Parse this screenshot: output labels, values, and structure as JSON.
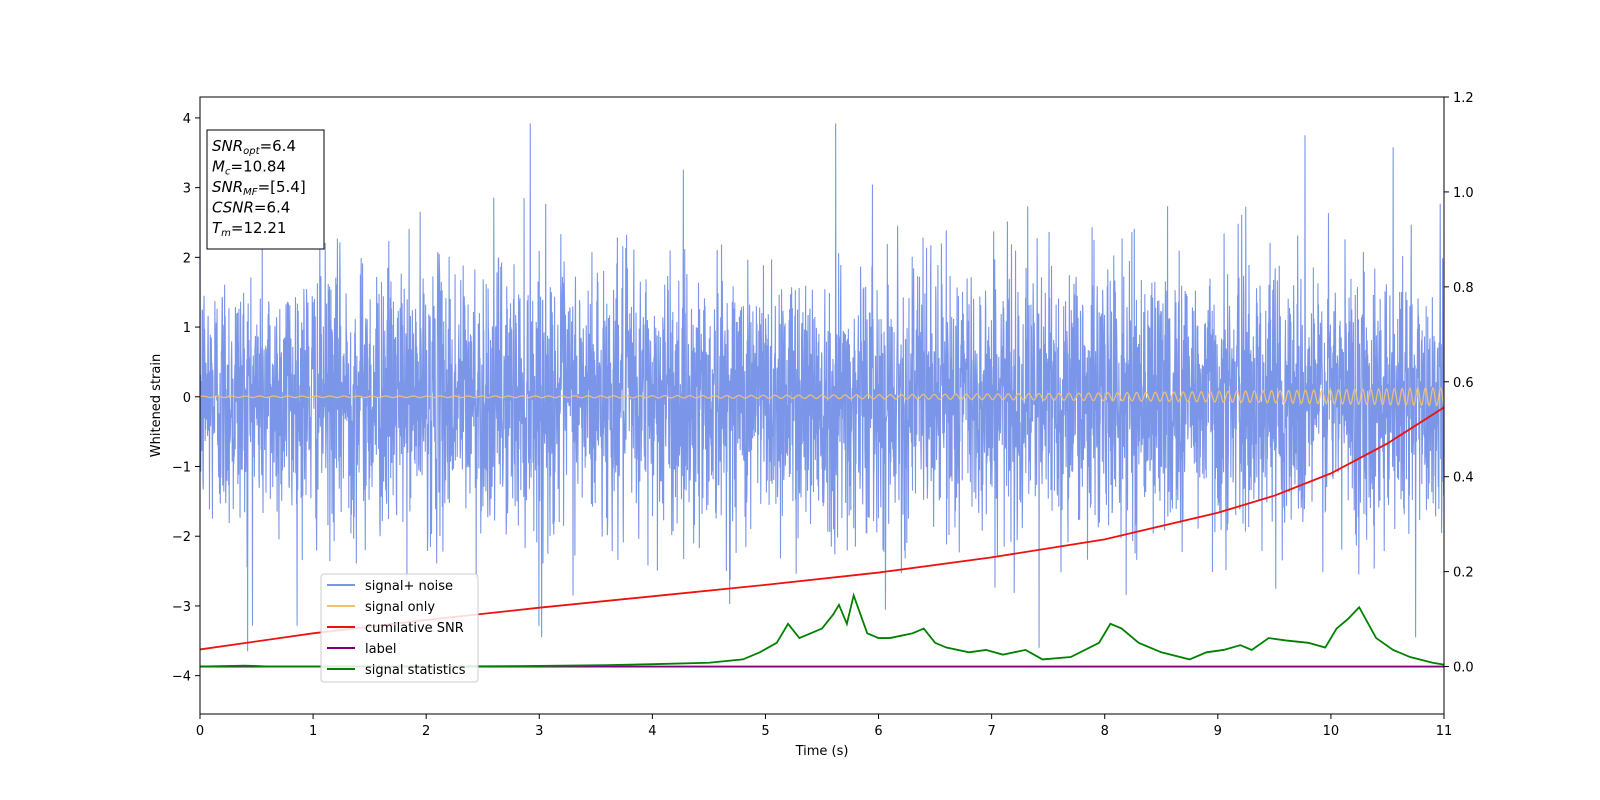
{
  "chart_data": {
    "type": "line",
    "xlabel": "Time (s)",
    "ylabel": "Whitened strain",
    "xlim": [
      0,
      11
    ],
    "ylim": [
      -4.55,
      4.3
    ],
    "y2lim": [
      -0.1,
      1.2
    ],
    "x_ticks": [
      0,
      1,
      2,
      3,
      4,
      5,
      6,
      7,
      8,
      9,
      10,
      11
    ],
    "y_ticks": [
      -4,
      -3,
      -2,
      -1,
      0,
      1,
      2,
      3,
      4
    ],
    "y_tick_labels": [
      "−4",
      "−3",
      "−2",
      "−1",
      "0",
      "1",
      "2",
      "3",
      "4"
    ],
    "y2_ticks": [
      0.0,
      0.2,
      0.4,
      0.6,
      0.8,
      1.0,
      1.2
    ],
    "y2_tick_labels": [
      "0.0",
      "0.2",
      "0.4",
      "0.6",
      "0.8",
      "1.0",
      "1.2"
    ],
    "grid": false,
    "legend_position": "lower-left",
    "annotation": {
      "lines": [
        {
          "base": "SNR",
          "sub": "opt",
          "value": "=6.4"
        },
        {
          "base": "M",
          "sub": "c",
          "value": "=10.84"
        },
        {
          "base": "SNR",
          "sub": "MF",
          "value": "=[5.4]"
        },
        {
          "base": "CSNR",
          "sub": "",
          "value": "=6.4"
        },
        {
          "base": "T",
          "sub": "m",
          "value": "=12.21"
        }
      ]
    },
    "series": [
      {
        "name": "signal+ noise",
        "color": "#7b96e8",
        "axis": "left",
        "kind": "noise",
        "std": 0.95,
        "x_range": [
          0,
          11
        ],
        "visible_y_range": [
          -3.65,
          3.93
        ],
        "peaks": [
          [
            0.42,
            -3.65
          ],
          [
            2.92,
            3.92
          ],
          [
            3.02,
            -3.45
          ],
          [
            5.62,
            3.92
          ],
          [
            7.42,
            -3.6
          ],
          [
            9.77,
            3.75
          ],
          [
            10.55,
            3.58
          ],
          [
            10.75,
            -3.45
          ]
        ]
      },
      {
        "name": "signal only",
        "color": "#f5c26b",
        "axis": "left",
        "kind": "chirp",
        "x_range": [
          0,
          11
        ],
        "amplitude_start": 0.01,
        "amplitude_end": 0.13
      },
      {
        "name": "cumilative SNR",
        "color": "#ee1111",
        "axis": "right",
        "x": [
          0,
          1,
          2,
          3,
          4,
          5,
          6,
          7,
          8,
          9,
          9.5,
          10,
          10.5,
          11
        ],
        "values": [
          0.036,
          0.07,
          0.098,
          0.124,
          0.148,
          0.172,
          0.198,
          0.23,
          0.268,
          0.324,
          0.36,
          0.407,
          0.47,
          0.546
        ]
      },
      {
        "name": "label",
        "color": "#800080",
        "axis": "right",
        "x": [
          0,
          11
        ],
        "values": [
          0.0,
          0.0
        ]
      },
      {
        "name": "signal statistics",
        "color": "#008000",
        "axis": "right",
        "x": [
          0,
          0.4,
          0.6,
          1.0,
          2.0,
          2.9,
          3.2,
          3.6,
          4.0,
          4.5,
          4.8,
          4.95,
          5.1,
          5.2,
          5.3,
          5.4,
          5.5,
          5.6,
          5.65,
          5.72,
          5.78,
          5.9,
          6.0,
          6.1,
          6.2,
          6.3,
          6.4,
          6.5,
          6.6,
          6.8,
          6.95,
          7.1,
          7.3,
          7.45,
          7.7,
          7.95,
          8.05,
          8.15,
          8.3,
          8.5,
          8.75,
          8.9,
          9.05,
          9.2,
          9.3,
          9.45,
          9.6,
          9.8,
          9.95,
          10.05,
          10.15,
          10.25,
          10.4,
          10.55,
          10.7,
          10.9,
          11.0
        ],
        "values": [
          0.0,
          0.002,
          0.0,
          0.0,
          0.0,
          0.001,
          0.002,
          0.003,
          0.005,
          0.008,
          0.015,
          0.03,
          0.05,
          0.09,
          0.06,
          0.07,
          0.08,
          0.11,
          0.13,
          0.09,
          0.15,
          0.07,
          0.06,
          0.06,
          0.065,
          0.07,
          0.08,
          0.05,
          0.04,
          0.03,
          0.035,
          0.025,
          0.035,
          0.015,
          0.02,
          0.05,
          0.09,
          0.08,
          0.05,
          0.03,
          0.015,
          0.03,
          0.035,
          0.045,
          0.035,
          0.06,
          0.055,
          0.05,
          0.04,
          0.08,
          0.1,
          0.125,
          0.06,
          0.035,
          0.02,
          0.008,
          0.004
        ]
      }
    ]
  }
}
